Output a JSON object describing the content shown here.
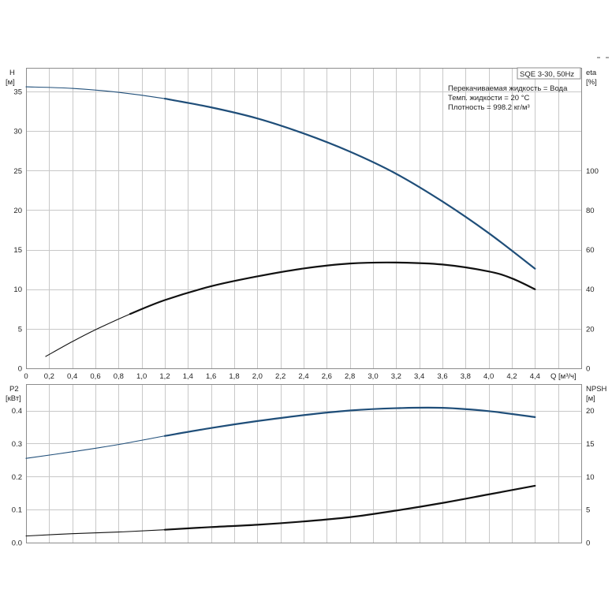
{
  "chart_data": [
    {
      "type": "line",
      "title": "SQE 3-30, 50Hz",
      "info_lines": [
        "Перекачиваемая жидкость = Вода",
        "Темп. жидкости = 20 °C",
        "Плотность = 998.2 кг/м³"
      ],
      "xlabel": "Q [м³/ч]",
      "xlim": [
        0,
        4.8
      ],
      "x_ticks": [
        "0",
        "0,2",
        "0,4",
        "0,6",
        "0,8",
        "1,0",
        "1,2",
        "1,4",
        "1,6",
        "1,8",
        "2,0",
        "2,2",
        "2,4",
        "2,6",
        "2,8",
        "3,0",
        "3,2",
        "3,4",
        "3,6",
        "3,8",
        "4,0",
        "4,2",
        "4,4"
      ],
      "y_left": {
        "label_top": "H",
        "label_unit": "[м]",
        "ylim": [
          0,
          38
        ],
        "ticks": [
          "0",
          "5",
          "10",
          "15",
          "20",
          "25",
          "30",
          "35"
        ]
      },
      "y_right": {
        "label_top": "eta",
        "label_unit": "[%]",
        "ylim": [
          0,
          152
        ],
        "ticks": [
          "0",
          "20",
          "40",
          "60",
          "80",
          "100"
        ]
      },
      "grid": true,
      "series": [
        {
          "axis": "left",
          "color": "#1f4e79",
          "x": [
            0,
            0.4,
            0.8,
            1.2,
            1.6,
            2.0,
            2.4,
            2.8,
            3.2,
            3.6,
            4.0,
            4.4
          ],
          "y": [
            35.6,
            35.4,
            34.9,
            34.1,
            33.0,
            31.6,
            29.7,
            27.4,
            24.6,
            21.1,
            17.1,
            12.6
          ]
        },
        {
          "axis": "right",
          "color": "#111111",
          "x": [
            0.17,
            0.4,
            0.6,
            0.9,
            1.2,
            1.6,
            2.0,
            2.4,
            2.8,
            3.2,
            3.6,
            4.0,
            4.2,
            4.4
          ],
          "y": [
            6,
            13.5,
            19.5,
            27.5,
            34.5,
            41.5,
            46.5,
            50.5,
            53,
            53.5,
            52.5,
            49,
            45.5,
            40
          ]
        }
      ]
    },
    {
      "type": "line",
      "xlim": [
        0,
        4.8
      ],
      "y_left": {
        "label_top": "P2",
        "label_unit": "[кВт]",
        "ylim": [
          0,
          0.48
        ],
        "ticks": [
          "0.0",
          "0.1",
          "0.2",
          "0.3",
          "0.4"
        ]
      },
      "y_right": {
        "label_top": "NPSH",
        "label_unit": "[м]",
        "ylim": [
          0,
          24
        ],
        "ticks": [
          "0",
          "5",
          "10",
          "15",
          "20"
        ]
      },
      "grid": true,
      "series": [
        {
          "axis": "left",
          "color": "#1f4e79",
          "x": [
            0,
            0.4,
            0.8,
            1.2,
            1.6,
            2.0,
            2.4,
            2.8,
            3.2,
            3.6,
            4.0,
            4.4
          ],
          "y": [
            0.255,
            0.275,
            0.297,
            0.323,
            0.347,
            0.368,
            0.386,
            0.4,
            0.407,
            0.408,
            0.398,
            0.38
          ]
        },
        {
          "axis": "right",
          "color": "#111111",
          "x": [
            0,
            0.4,
            0.8,
            1.2,
            1.6,
            2.0,
            2.4,
            2.8,
            3.2,
            3.6,
            4.0,
            4.4
          ],
          "y": [
            1.0,
            1.35,
            1.6,
            1.95,
            2.35,
            2.7,
            3.2,
            3.85,
            4.85,
            6.0,
            7.3,
            8.6
          ]
        }
      ]
    }
  ]
}
